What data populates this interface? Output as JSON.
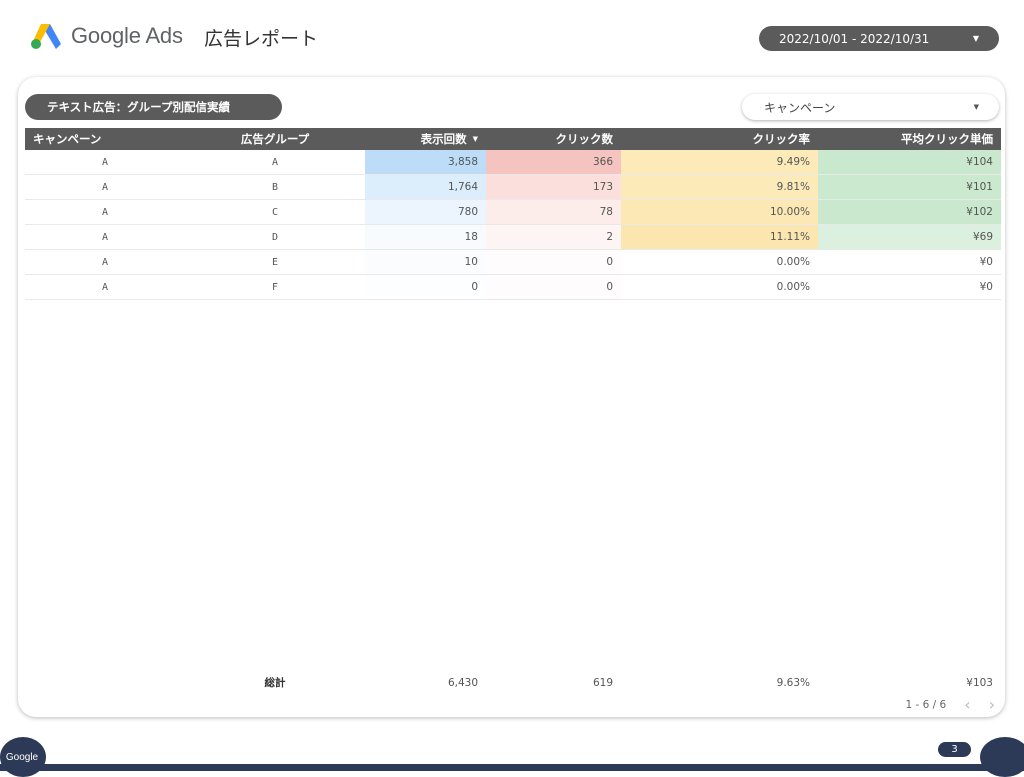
{
  "header": {
    "brand": "Google Ads",
    "report_title": "広告レポート",
    "date_range": "2022/10/01 - 2022/10/31"
  },
  "card": {
    "title": "テキスト広告：グループ別配信実績",
    "campaign_filter": "キャンペーン"
  },
  "table": {
    "columns": [
      "キャンペーン",
      "広告グループ",
      "表示回数",
      "クリック数",
      "クリック率",
      "平均クリック単価"
    ],
    "rows": [
      {
        "campaign": "A",
        "group": "A",
        "impressions": "3,858",
        "clicks": "366",
        "ctr": "9.49%",
        "cpc": "¥104"
      },
      {
        "campaign": "A",
        "group": "B",
        "impressions": "1,764",
        "clicks": "173",
        "ctr": "9.81%",
        "cpc": "¥101"
      },
      {
        "campaign": "A",
        "group": "C",
        "impressions": "780",
        "clicks": "78",
        "ctr": "10.00%",
        "cpc": "¥102"
      },
      {
        "campaign": "A",
        "group": "D",
        "impressions": "18",
        "clicks": "2",
        "ctr": "11.11%",
        "cpc": "¥69"
      },
      {
        "campaign": "A",
        "group": "E",
        "impressions": "10",
        "clicks": "0",
        "ctr": "0.00%",
        "cpc": "¥0"
      },
      {
        "campaign": "A",
        "group": "F",
        "impressions": "0",
        "clicks": "0",
        "ctr": "0.00%",
        "cpc": "¥0"
      }
    ],
    "heat": {
      "impressions": [
        "#bcdcf7",
        "#dcedfb",
        "#ecf5fd",
        "#f7fbfe",
        "#fafcfe",
        "#fdfeff"
      ],
      "clicks": [
        "#f5c3c0",
        "#fadfdd",
        "#fcecea",
        "#fdf5f4",
        "#fefcfc",
        "#fefcfc"
      ],
      "ctr": [
        "#fdeab9",
        "#fdeab9",
        "#fce8b4",
        "#fce6af",
        "#ffffff",
        "#ffffff"
      ],
      "cpc": [
        "#c9e8cd",
        "#cbe9cf",
        "#c9e8cd",
        "#dcf0df",
        "#ffffff",
        "#ffffff"
      ]
    },
    "totals": {
      "label": "総計",
      "impressions": "6,430",
      "clicks": "619",
      "ctr": "9.63%",
      "cpc": "¥103"
    },
    "pagination": "1 - 6 / 6"
  },
  "footer": {
    "badge": "Google",
    "page_number": "3"
  }
}
